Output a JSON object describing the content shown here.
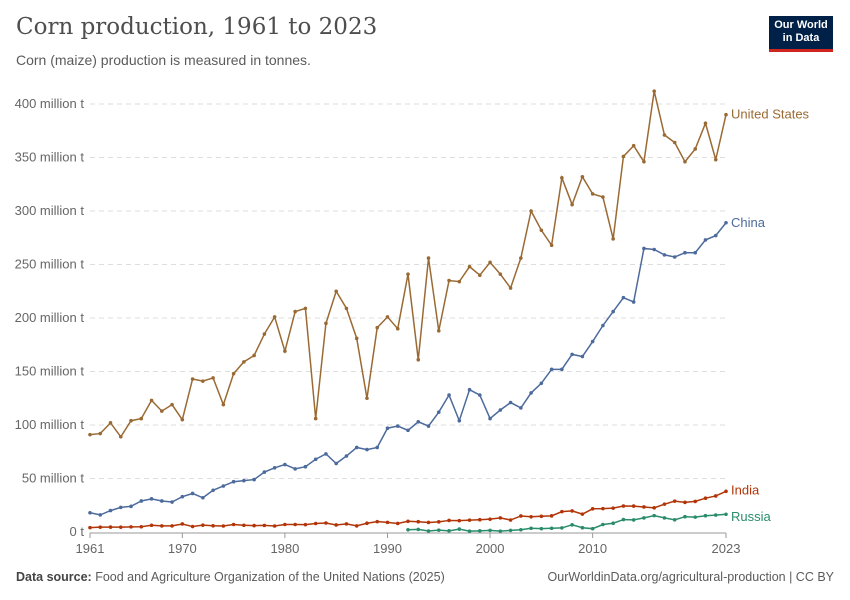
{
  "header": {
    "title": "Corn production, 1961 to 2023",
    "subtitle": "Corn (maize) production is measured in tonnes.",
    "logo": "Our World in Data"
  },
  "footer": {
    "source_label": "Data source:",
    "source": "Food and Agriculture Organization of the United Nations (2025)",
    "link": "OurWorldinData.org/agricultural-production | CC BY"
  },
  "chart_data": {
    "type": "line",
    "title": "Corn production, 1961 to 2023",
    "ylabel": "",
    "xlabel": "",
    "unit": "million t",
    "ylim": [
      0,
      400
    ],
    "xlim": [
      1961,
      2023
    ],
    "grid": "horizontal dashed",
    "legend": "line-end labels",
    "yticks": [
      0,
      50,
      100,
      150,
      200,
      250,
      300,
      350,
      400
    ],
    "ytick_labels": [
      "0 t",
      "50 million t",
      "100 million t",
      "150 million t",
      "200 million t",
      "250 million t",
      "300 million t",
      "350 million t",
      "400 million t"
    ],
    "xticks": [
      1961,
      1970,
      1980,
      1990,
      2000,
      2010,
      2023
    ],
    "xtick_labels": [
      "1961",
      "1970",
      "1980",
      "1990",
      "2000",
      "2010",
      "2023"
    ],
    "series": [
      {
        "name": "United States",
        "color": "#9a6a34",
        "start": 1961,
        "values": [
          91,
          92,
          102,
          89,
          104,
          106,
          123,
          113,
          119,
          105,
          143,
          141,
          144,
          119,
          148,
          159,
          165,
          185,
          201,
          169,
          206,
          209,
          106,
          195,
          225,
          209,
          181,
          125,
          191,
          201,
          190,
          241,
          161,
          256,
          188,
          235,
          234,
          248,
          240,
          252,
          241,
          228,
          256,
          300,
          282,
          268,
          331,
          306,
          332,
          316,
          313,
          274,
          351,
          361,
          346,
          412,
          371,
          364,
          346,
          358,
          382,
          348,
          390
        ]
      },
      {
        "name": "China",
        "color": "#4c6a9c",
        "start": 1961,
        "values": [
          18,
          16,
          20,
          23,
          24,
          29,
          31,
          29,
          28,
          33,
          36,
          32,
          39,
          43,
          47,
          48,
          49,
          56,
          60,
          63,
          59,
          61,
          68,
          73,
          64,
          71,
          79,
          77,
          79,
          97,
          99,
          95,
          103,
          99,
          112,
          128,
          104,
          133,
          128,
          106,
          114,
          121,
          116,
          130,
          139,
          152,
          152,
          166,
          164,
          178,
          193,
          206,
          219,
          215,
          265,
          264,
          259,
          257,
          261,
          261,
          273,
          277,
          289
        ]
      },
      {
        "name": "India",
        "color": "#b13507",
        "start": 1961,
        "values": [
          4.1,
          4.5,
          4.6,
          4.5,
          4.8,
          4.9,
          6.3,
          5.7,
          5.7,
          7.5,
          5.1,
          6.4,
          5.8,
          5.6,
          7.0,
          6.3,
          6.0,
          6.2,
          5.6,
          7.0,
          7.0,
          6.9,
          7.9,
          8.4,
          6.6,
          7.6,
          5.7,
          8.2,
          9.7,
          9.0,
          8.0,
          10.0,
          9.6,
          8.9,
          9.5,
          10.8,
          10.6,
          11.1,
          11.5,
          12.0,
          13.2,
          11.2,
          15.0,
          14.2,
          14.7,
          15.1,
          19.0,
          19.7,
          16.7,
          21.7,
          21.8,
          22.3,
          24.3,
          24.2,
          23.4,
          22.6,
          26.0,
          28.8,
          27.7,
          28.6,
          31.6,
          33.7,
          38.0
        ]
      },
      {
        "name": "Russia",
        "color": "#2a8c6c",
        "start": 1992,
        "values": [
          2.1,
          2.4,
          0.9,
          1.7,
          1.1,
          2.7,
          0.8,
          1.1,
          1.5,
          0.8,
          1.5,
          2.1,
          3.5,
          3.1,
          3.5,
          3.8,
          6.7,
          4.0,
          3.1,
          7.0,
          8.2,
          11.6,
          11.3,
          13.2,
          15.3,
          13.2,
          11.4,
          14.3,
          13.9,
          15.2,
          15.8,
          16.6
        ]
      }
    ]
  }
}
